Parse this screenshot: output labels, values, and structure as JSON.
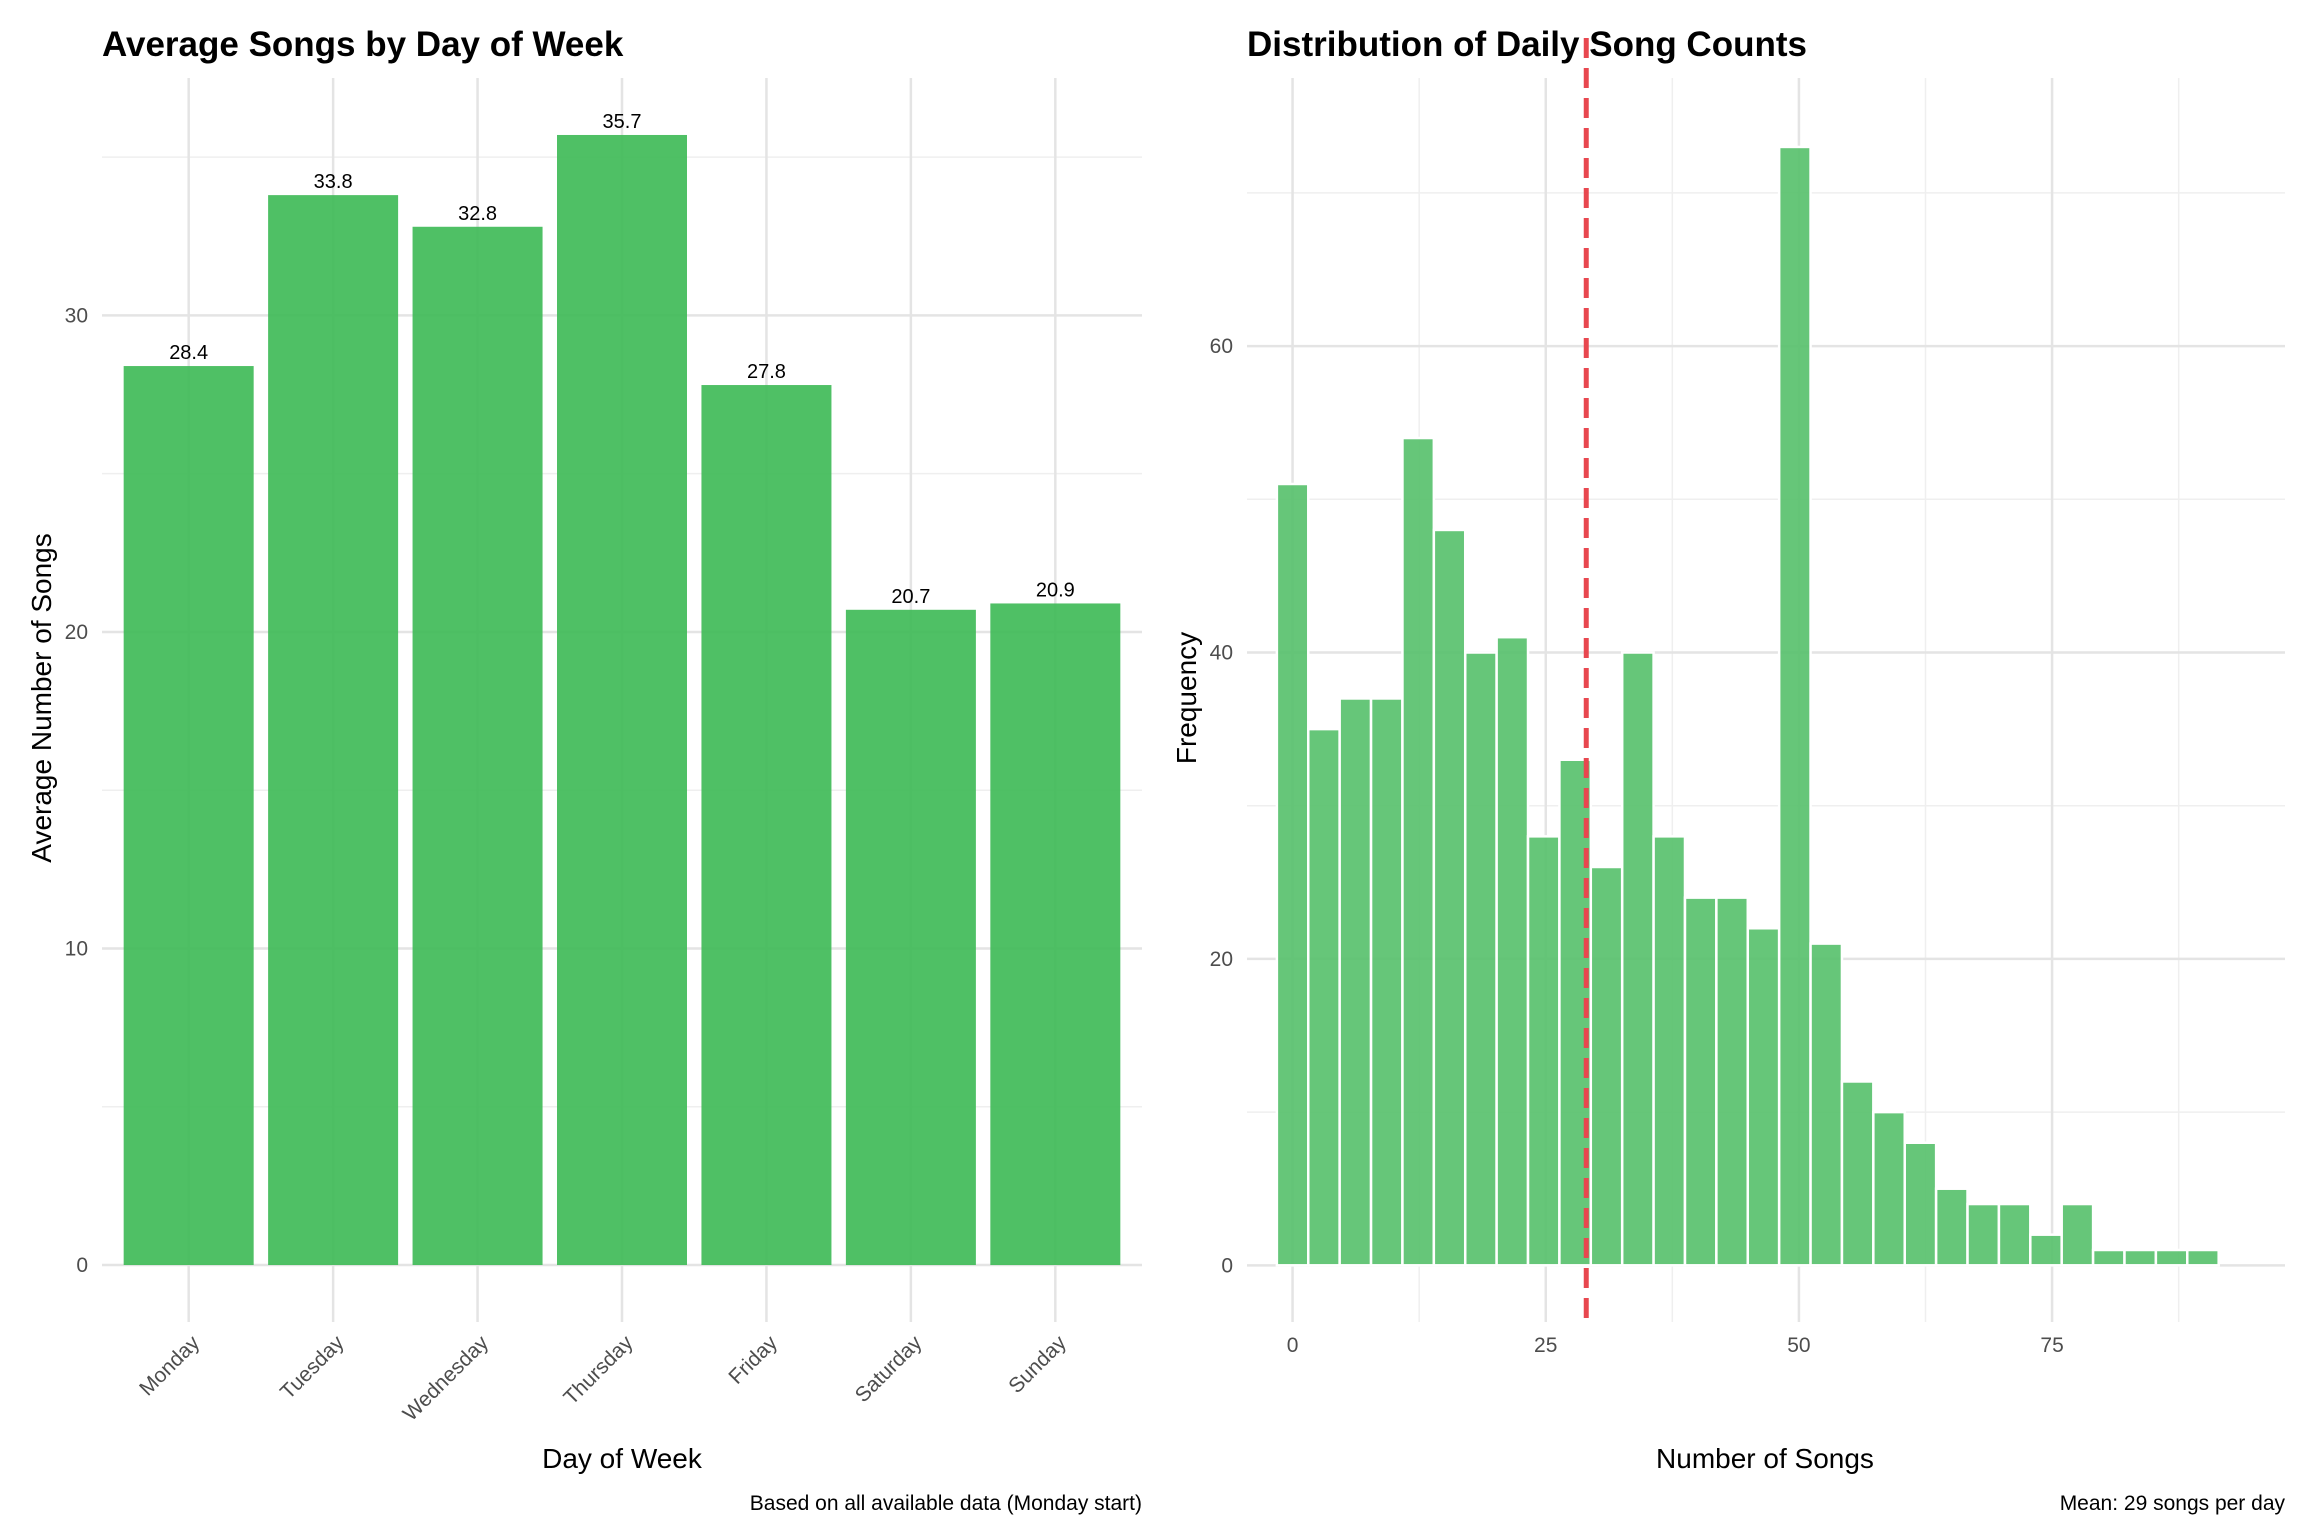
{
  "chart_data": [
    {
      "type": "bar",
      "title": "Average Songs by Day of Week",
      "xlabel": "Day of Week",
      "ylabel": "Average Number of Songs",
      "caption": "Based on all available data (Monday start)",
      "categories": [
        "Monday",
        "Tuesday",
        "Wednesday",
        "Thursday",
        "Friday",
        "Saturday",
        "Sunday"
      ],
      "values": [
        28.4,
        33.8,
        32.8,
        35.7,
        27.8,
        20.7,
        20.9
      ],
      "value_labels": [
        "28.4",
        "33.8",
        "32.8",
        "35.7",
        "27.8",
        "20.7",
        "20.9"
      ],
      "ylim": [
        -1.8,
        37.5
      ],
      "yticks": [
        0,
        10,
        20,
        30
      ],
      "ytick_labels": [
        "0",
        "10",
        "20",
        "30"
      ],
      "grid": true,
      "bar_color": "#3cb954"
    },
    {
      "type": "histogram",
      "title": "Distribution of Daily Song Counts",
      "xlabel": "Number of Songs",
      "ylabel": "Frequency",
      "caption": "Mean: 29 songs per day",
      "bin_width": 3.1,
      "bin_start": -1.55,
      "frequencies": [
        51,
        35,
        37,
        37,
        54,
        48,
        40,
        41,
        28,
        33,
        26,
        40,
        28,
        24,
        24,
        22,
        73,
        21,
        12,
        10,
        8,
        5,
        4,
        4,
        2,
        4,
        1,
        1,
        1,
        1
      ],
      "mean": 29,
      "xlim": [
        -4.5,
        98
      ],
      "ylim": [
        -3.7,
        77.5
      ],
      "xticks": [
        0,
        25,
        50,
        75
      ],
      "xtick_labels": [
        "0",
        "25",
        "50",
        "75"
      ],
      "yticks": [
        0,
        20,
        40,
        60
      ],
      "ytick_labels": [
        "0",
        "20",
        "40",
        "60"
      ],
      "grid": true,
      "bar_color": "#55c06a",
      "mean_line_color": "#e8474f"
    }
  ]
}
